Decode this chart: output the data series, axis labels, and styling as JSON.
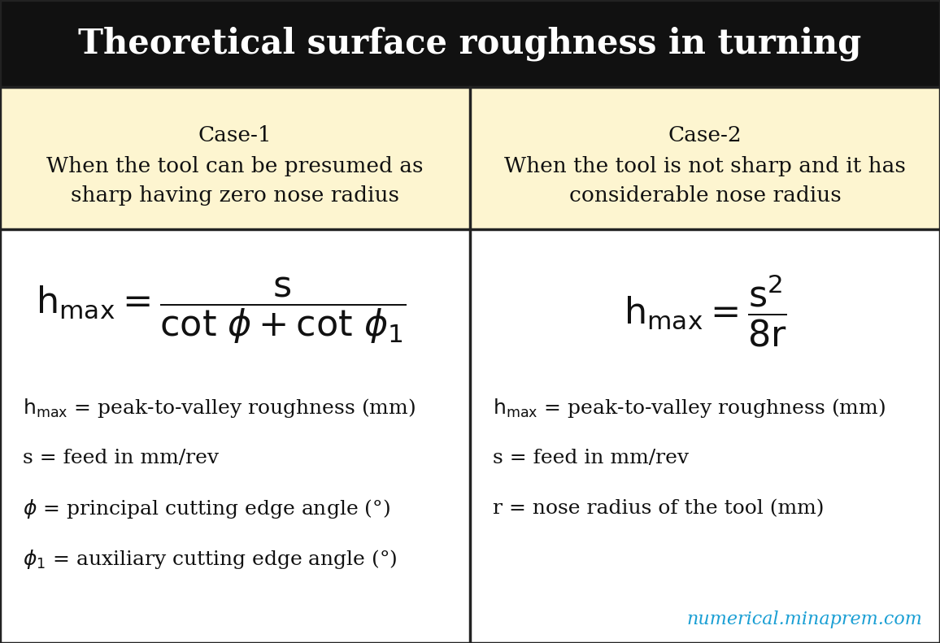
{
  "title": "Theoretical surface roughness in turning",
  "title_bg": "#111111",
  "title_color": "#ffffff",
  "title_fontsize": 30,
  "header_bg": "#fdf5d0",
  "body_bg": "#ffffff",
  "border_color": "#222222",
  "case1_header_line1": "Case-1",
  "case1_header_line2": "When the tool can be presumed as",
  "case1_header_line3": "sharp having zero nose radius",
  "case2_header_line1": "Case-2",
  "case2_header_line2": "When the tool is not sharp and it has",
  "case2_header_line3": "considerable nose radius",
  "case1_vars": [
    "$\\mathrm{h_{max}}$ = peak-to-valley roughness (mm)",
    "s = feed in mm/rev",
    "$\\phi$ = principal cutting edge angle (°)",
    "$\\phi_1$ = auxiliary cutting edge angle (°)"
  ],
  "case2_vars": [
    "$\\mathrm{h_{max}}$ = peak-to-valley roughness (mm)",
    "s = feed in mm/rev",
    "r = nose radius of the tool (mm)"
  ],
  "watermark": "numerical.minaprem.com",
  "watermark_color": "#1a9fd4",
  "header_fontsize": 19,
  "var_fontsize": 18,
  "fig_width": 11.56,
  "fig_height": 7.91,
  "dpi": 100
}
